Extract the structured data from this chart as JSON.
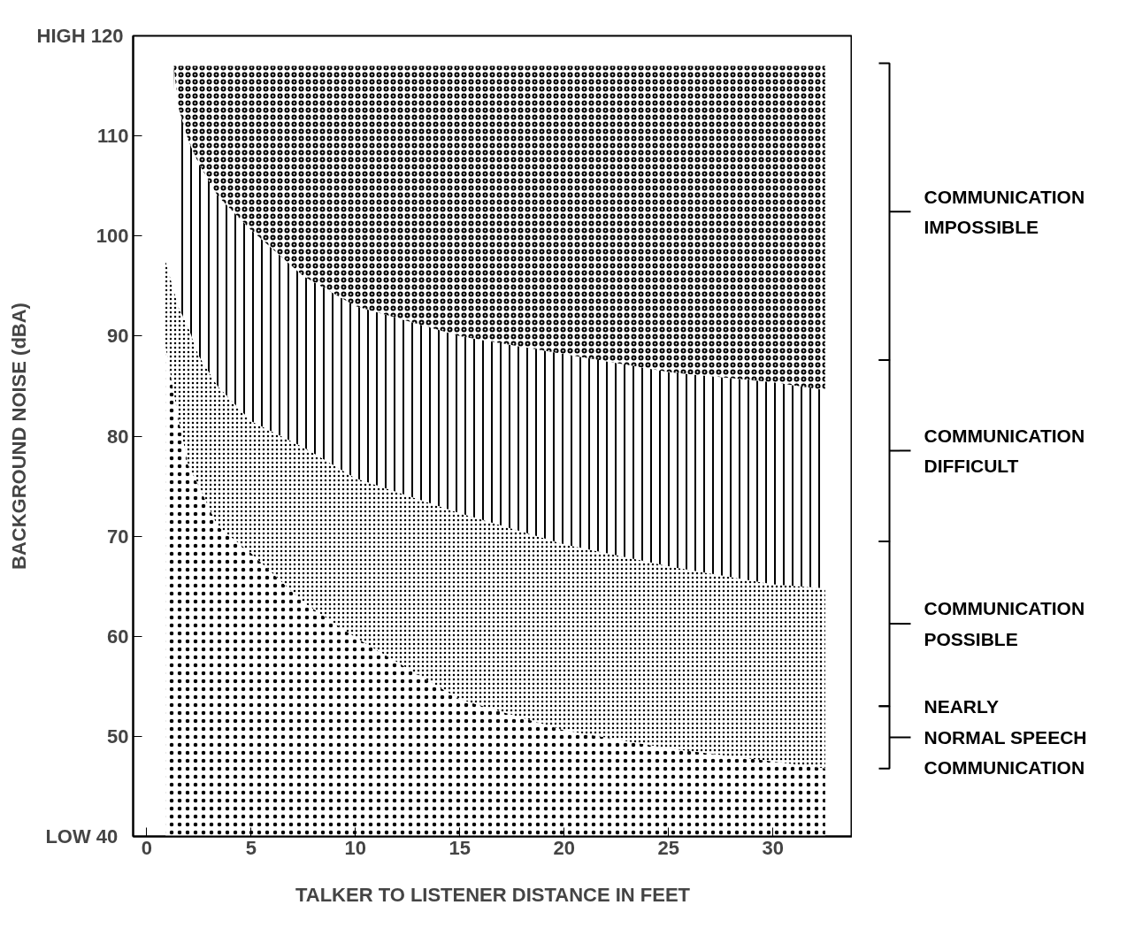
{
  "chart_data": {
    "type": "area",
    "xlabel": "TALKER TO LISTENER DISTANCE IN FEET",
    "ylabel": "BACKGROUND NOISE (dBA)",
    "xlim": [
      -0.65,
      33.8
    ],
    "ylim": [
      40,
      120
    ],
    "xticks": [
      0,
      5,
      10,
      15,
      20,
      25,
      30
    ],
    "yticks": [
      {
        "value": 40,
        "label": "LOW   40"
      },
      50,
      60,
      70,
      80,
      90,
      100,
      110,
      {
        "value": 120,
        "label": "HIGH  120"
      }
    ],
    "grid": false,
    "legend": "right",
    "series": [
      {
        "name": "NEARLY\nNORMAL SPEECH\nCOMMUNICATION",
        "color": "#000000",
        "x": [
          0.9,
          1.5,
          2,
          2.5,
          3.4,
          5,
          7.5,
          10,
          15,
          20,
          25,
          30,
          32.5
        ],
        "values": [
          89,
          82,
          77,
          75,
          71,
          68.3,
          63.4,
          59.9,
          53.7,
          50.6,
          48.8,
          47.5,
          46.8
        ]
      },
      {
        "name": "COMMUNICATION\nPOSSIBLE",
        "color": "#000000",
        "x": [
          0.9,
          1.5,
          2,
          2.5,
          3.4,
          5,
          7.5,
          10,
          15,
          20,
          25,
          30,
          32.5
        ],
        "values": [
          97.5,
          93,
          90.8,
          88,
          85,
          81.5,
          78.9,
          75.8,
          72.3,
          69.2,
          67,
          65.2,
          64.8
        ]
      },
      {
        "name": "COMMUNICATION\nDIFFICULT",
        "color": "#000000",
        "x": [
          1.3,
          1.5,
          2,
          2.5,
          3.4,
          5,
          7.5,
          10,
          15,
          20,
          25,
          30,
          32.5
        ],
        "values": [
          117,
          113,
          109.5,
          107.2,
          104,
          100.6,
          96,
          93,
          90,
          88.2,
          86.4,
          85.4,
          84.6
        ]
      },
      {
        "name": "COMMUNICATION\nIMPOSSIBLE",
        "color": "#000000",
        "x": [
          1.3,
          1.5,
          2,
          2.5,
          3.4,
          5,
          7.5,
          10,
          15,
          20,
          25,
          30,
          32.5
        ],
        "values": [
          117,
          117,
          117,
          117,
          117,
          117,
          117,
          117,
          117,
          117,
          117,
          117,
          117
        ]
      }
    ]
  }
}
